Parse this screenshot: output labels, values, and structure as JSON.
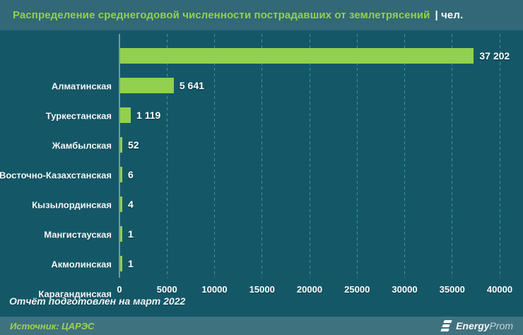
{
  "header": {
    "title": "Распределение среднегодовой численности пострадавших от землетрясений",
    "title_suffix": "| чел."
  },
  "chart_data": {
    "type": "bar",
    "orientation": "horizontal",
    "title": "Распределение среднегодовой численности пострадавших от землетрясений, чел.",
    "categories": [
      "Алматинская",
      "Туркестанская",
      "Жамбылская",
      "Восточно-Казахстанская",
      "Кызылординская",
      "Мангистауская",
      "Акмолинская",
      "Карагандинская"
    ],
    "values": [
      37202,
      5641,
      1119,
      52,
      6,
      4,
      1,
      1
    ],
    "value_labels": [
      "37 202",
      "5 641",
      "1 119",
      "52",
      "6",
      "4",
      "1",
      "1"
    ],
    "xlim": [
      0,
      40000
    ],
    "x_ticks": [
      0,
      5000,
      10000,
      15000,
      20000,
      25000,
      30000,
      35000,
      40000
    ],
    "x_tick_labels": [
      "0",
      "5000",
      "10000",
      "15000",
      "20000",
      "25000",
      "30000",
      "35000",
      "40000"
    ],
    "grid": true,
    "gridline_style": "dashed",
    "legend": "none",
    "bar_color": "#92d050"
  },
  "footer": {
    "note": "Отчёт подготовлен на март 2022",
    "source": "Источник: ЦАРЭС",
    "logo_bold": "Energy",
    "logo_light": "Prom"
  },
  "colors": {
    "background": "#145868",
    "header_band": "#326877",
    "footer_band": "#3f727f",
    "bar": "#92d050",
    "title_text": "#92d050",
    "source_text": "#9ed24f",
    "gridline": "#3d93a9",
    "axis_line": "#84939a",
    "label_text": "#ffffff"
  }
}
